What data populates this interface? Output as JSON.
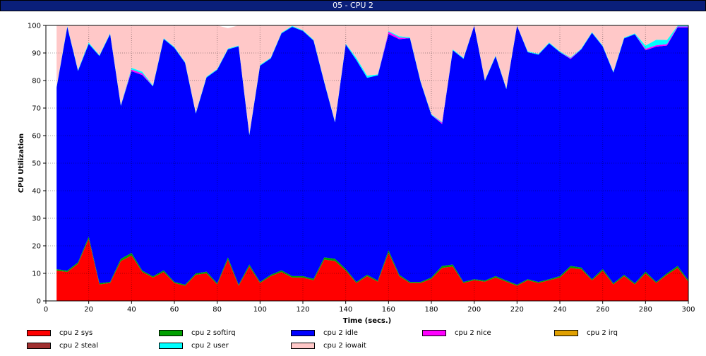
{
  "window": {
    "title": "05 - CPU 2"
  },
  "chart_data": {
    "type": "area",
    "stacked": true,
    "title": "05 - CPU 2",
    "xlabel": "Time (secs.)",
    "ylabel": "CPU Utilization",
    "xlim": [
      0,
      300
    ],
    "ylim": [
      0,
      100
    ],
    "xticks": [
      0,
      20,
      40,
      60,
      80,
      100,
      120,
      140,
      160,
      180,
      200,
      220,
      240,
      260,
      280,
      300
    ],
    "yticks": [
      0,
      10,
      20,
      30,
      40,
      50,
      60,
      70,
      80,
      90,
      100
    ],
    "grid": true,
    "legend_position": "bottom",
    "x": [
      5,
      10,
      15,
      20,
      25,
      30,
      35,
      40,
      45,
      50,
      55,
      60,
      65,
      70,
      75,
      80,
      85,
      90,
      95,
      100,
      105,
      110,
      115,
      120,
      125,
      130,
      135,
      140,
      145,
      150,
      155,
      160,
      165,
      170,
      175,
      180,
      185,
      190,
      195,
      200,
      205,
      210,
      215,
      220,
      225,
      230,
      235,
      240,
      245,
      250,
      255,
      260,
      265,
      270,
      275,
      280,
      285,
      290,
      295,
      300
    ],
    "series": [
      {
        "name": "cpu 2 sys",
        "color": "#ff0000",
        "values": [
          11,
          10.5,
          13.5,
          22.5,
          6,
          6.5,
          14.5,
          16.5,
          10.5,
          8.5,
          10.5,
          6.5,
          5.5,
          9.5,
          10,
          6,
          15,
          5.5,
          12.5,
          6.5,
          9,
          10.5,
          8.5,
          8.5,
          7.5,
          15,
          14.5,
          11,
          6.5,
          9,
          7,
          17.5,
          9,
          6.5,
          6.5,
          8,
          12,
          12.5,
          6.5,
          7.5,
          7,
          8.5,
          7,
          5.5,
          7.5,
          6.5,
          7.5,
          8.5,
          12,
          11.5,
          7.5,
          11,
          6,
          9,
          6,
          10,
          6.5,
          9.5,
          12,
          7
        ]
      },
      {
        "name": "cpu 2 softirq",
        "color": "#00a000",
        "values": [
          0.5,
          0.5,
          0.5,
          0.8,
          0.4,
          0.4,
          0.8,
          0.9,
          0.5,
          0.4,
          0.6,
          0.4,
          0.4,
          0.5,
          0.6,
          0.4,
          0.8,
          0.4,
          0.7,
          0.4,
          0.5,
          0.6,
          0.5,
          0.5,
          0.5,
          0.8,
          0.8,
          0.6,
          0.4,
          0.5,
          0.4,
          0.9,
          0.5,
          0.4,
          0.4,
          0.5,
          0.7,
          0.7,
          0.4,
          0.4,
          0.4,
          0.5,
          0.4,
          0.4,
          0.4,
          0.4,
          0.4,
          0.5,
          0.7,
          0.6,
          0.4,
          0.6,
          0.4,
          0.5,
          0.4,
          0.6,
          0.4,
          0.5,
          0.7,
          0.5
        ]
      },
      {
        "name": "cpu 2 idle",
        "color": "#0000ff",
        "values": [
          66,
          88.5,
          69.5,
          70,
          82.5,
          90,
          55.5,
          66,
          71,
          69,
          84,
          85,
          80.5,
          58,
          70.5,
          77.5,
          75.5,
          86.5,
          47,
          78.5,
          78.5,
          86,
          90.5,
          89,
          86.5,
          63.5,
          49.5,
          81.5,
          80.5,
          71.5,
          74.5,
          78.5,
          85.5,
          88.5,
          72.5,
          59,
          51.5,
          77.8,
          81,
          92,
          72.5,
          79.8,
          69.5,
          94,
          82.4,
          82.5,
          85.6,
          81.3,
          75.1,
          79.2,
          89.4,
          80.8,
          76.5,
          85.8,
          90.4,
          80.4,
          85.4,
          82.7,
          86.6,
          91.8
        ]
      },
      {
        "name": "cpu 2 nice",
        "color": "#ff00ff",
        "values": [
          0,
          0,
          0,
          0,
          0,
          0,
          0,
          0.6,
          0.6,
          0,
          0,
          0,
          0,
          0,
          0,
          0,
          0,
          0,
          0,
          0,
          0,
          0,
          0,
          0,
          0,
          0,
          0,
          0,
          0,
          0,
          0,
          0.8,
          0.6,
          0,
          0,
          0,
          0.5,
          0,
          0,
          0,
          0,
          0,
          0,
          0,
          0,
          0,
          0,
          0,
          0.3,
          0,
          0,
          0,
          0,
          0,
          0,
          0.5,
          0.5,
          0.5,
          0.3,
          0.3
        ]
      },
      {
        "name": "cpu 2 irq",
        "color": "#e0a000",
        "values": [
          0,
          0,
          0,
          0,
          0,
          0,
          0,
          0,
          0,
          0,
          0,
          0,
          0,
          0,
          0,
          0,
          0,
          0,
          0,
          0,
          0,
          0,
          0,
          0,
          0,
          0,
          0,
          0,
          0,
          0,
          0,
          0,
          0,
          0,
          0,
          0,
          0,
          0,
          0,
          0,
          0,
          0,
          0,
          0,
          0,
          0,
          0,
          0,
          0,
          0,
          0,
          0,
          0,
          0,
          0,
          0,
          0,
          0,
          0,
          0
        ]
      },
      {
        "name": "cpu 2 steal",
        "color": "#a03030",
        "values": [
          0,
          0,
          0,
          0,
          0,
          0,
          0,
          0,
          0,
          0,
          0,
          0,
          0,
          0,
          0,
          0,
          0,
          0,
          0,
          0,
          0,
          0,
          0,
          0,
          0,
          0,
          0,
          0,
          0,
          0,
          0,
          0,
          0,
          0,
          0,
          0,
          0,
          0,
          0,
          0,
          0,
          0,
          0,
          0,
          0,
          0,
          0,
          0,
          0,
          0,
          0,
          0,
          0,
          0,
          0,
          0,
          0,
          0,
          0,
          0
        ]
      },
      {
        "name": "cpu 2 user",
        "color": "#00ffff",
        "values": [
          0.3,
          0.3,
          0.3,
          0.5,
          0.3,
          0.3,
          0.3,
          0.6,
          0.6,
          0.3,
          0.3,
          0.3,
          0.3,
          0.3,
          0.3,
          0.3,
          0.3,
          0.3,
          0.3,
          0.3,
          0.3,
          0.3,
          0.3,
          0.3,
          0.3,
          0.3,
          0.3,
          0.3,
          0.8,
          0.8,
          0.3,
          0.3,
          0.5,
          0.3,
          0.3,
          0.3,
          0.3,
          0.3,
          0.3,
          0.3,
          0.3,
          0.3,
          0.3,
          0.3,
          0.3,
          0.3,
          0.3,
          0.3,
          0.3,
          0.3,
          0.3,
          0.3,
          0.3,
          0.3,
          0.3,
          1.2,
          2,
          1.5,
          0.3,
          0.3
        ]
      },
      {
        "name": "cpu 2 iowait",
        "color": "#ffc8c8",
        "values": [
          22.2,
          0.2,
          16.2,
          6.2,
          10.8,
          2.8,
          28.9,
          15.4,
          16.8,
          21.8,
          4.6,
          7.8,
          13.3,
          31.7,
          18.6,
          15.8,
          7.4,
          7.3,
          39.5,
          14.3,
          11.7,
          2.6,
          0.2,
          1.7,
          5.2,
          20.4,
          34.9,
          6.6,
          11.8,
          18.2,
          17.8,
          2,
          3.9,
          4.3,
          20.3,
          32.2,
          35,
          8.7,
          11.8,
          0,
          19.8,
          10.9,
          22.8,
          0,
          9.4,
          10.3,
          6.2,
          9.4,
          11.6,
          8.4,
          2.4,
          7.3,
          16.8,
          4.4,
          2.9,
          7.3,
          5.2,
          5.3,
          0.1,
          0.1
        ]
      }
    ]
  }
}
